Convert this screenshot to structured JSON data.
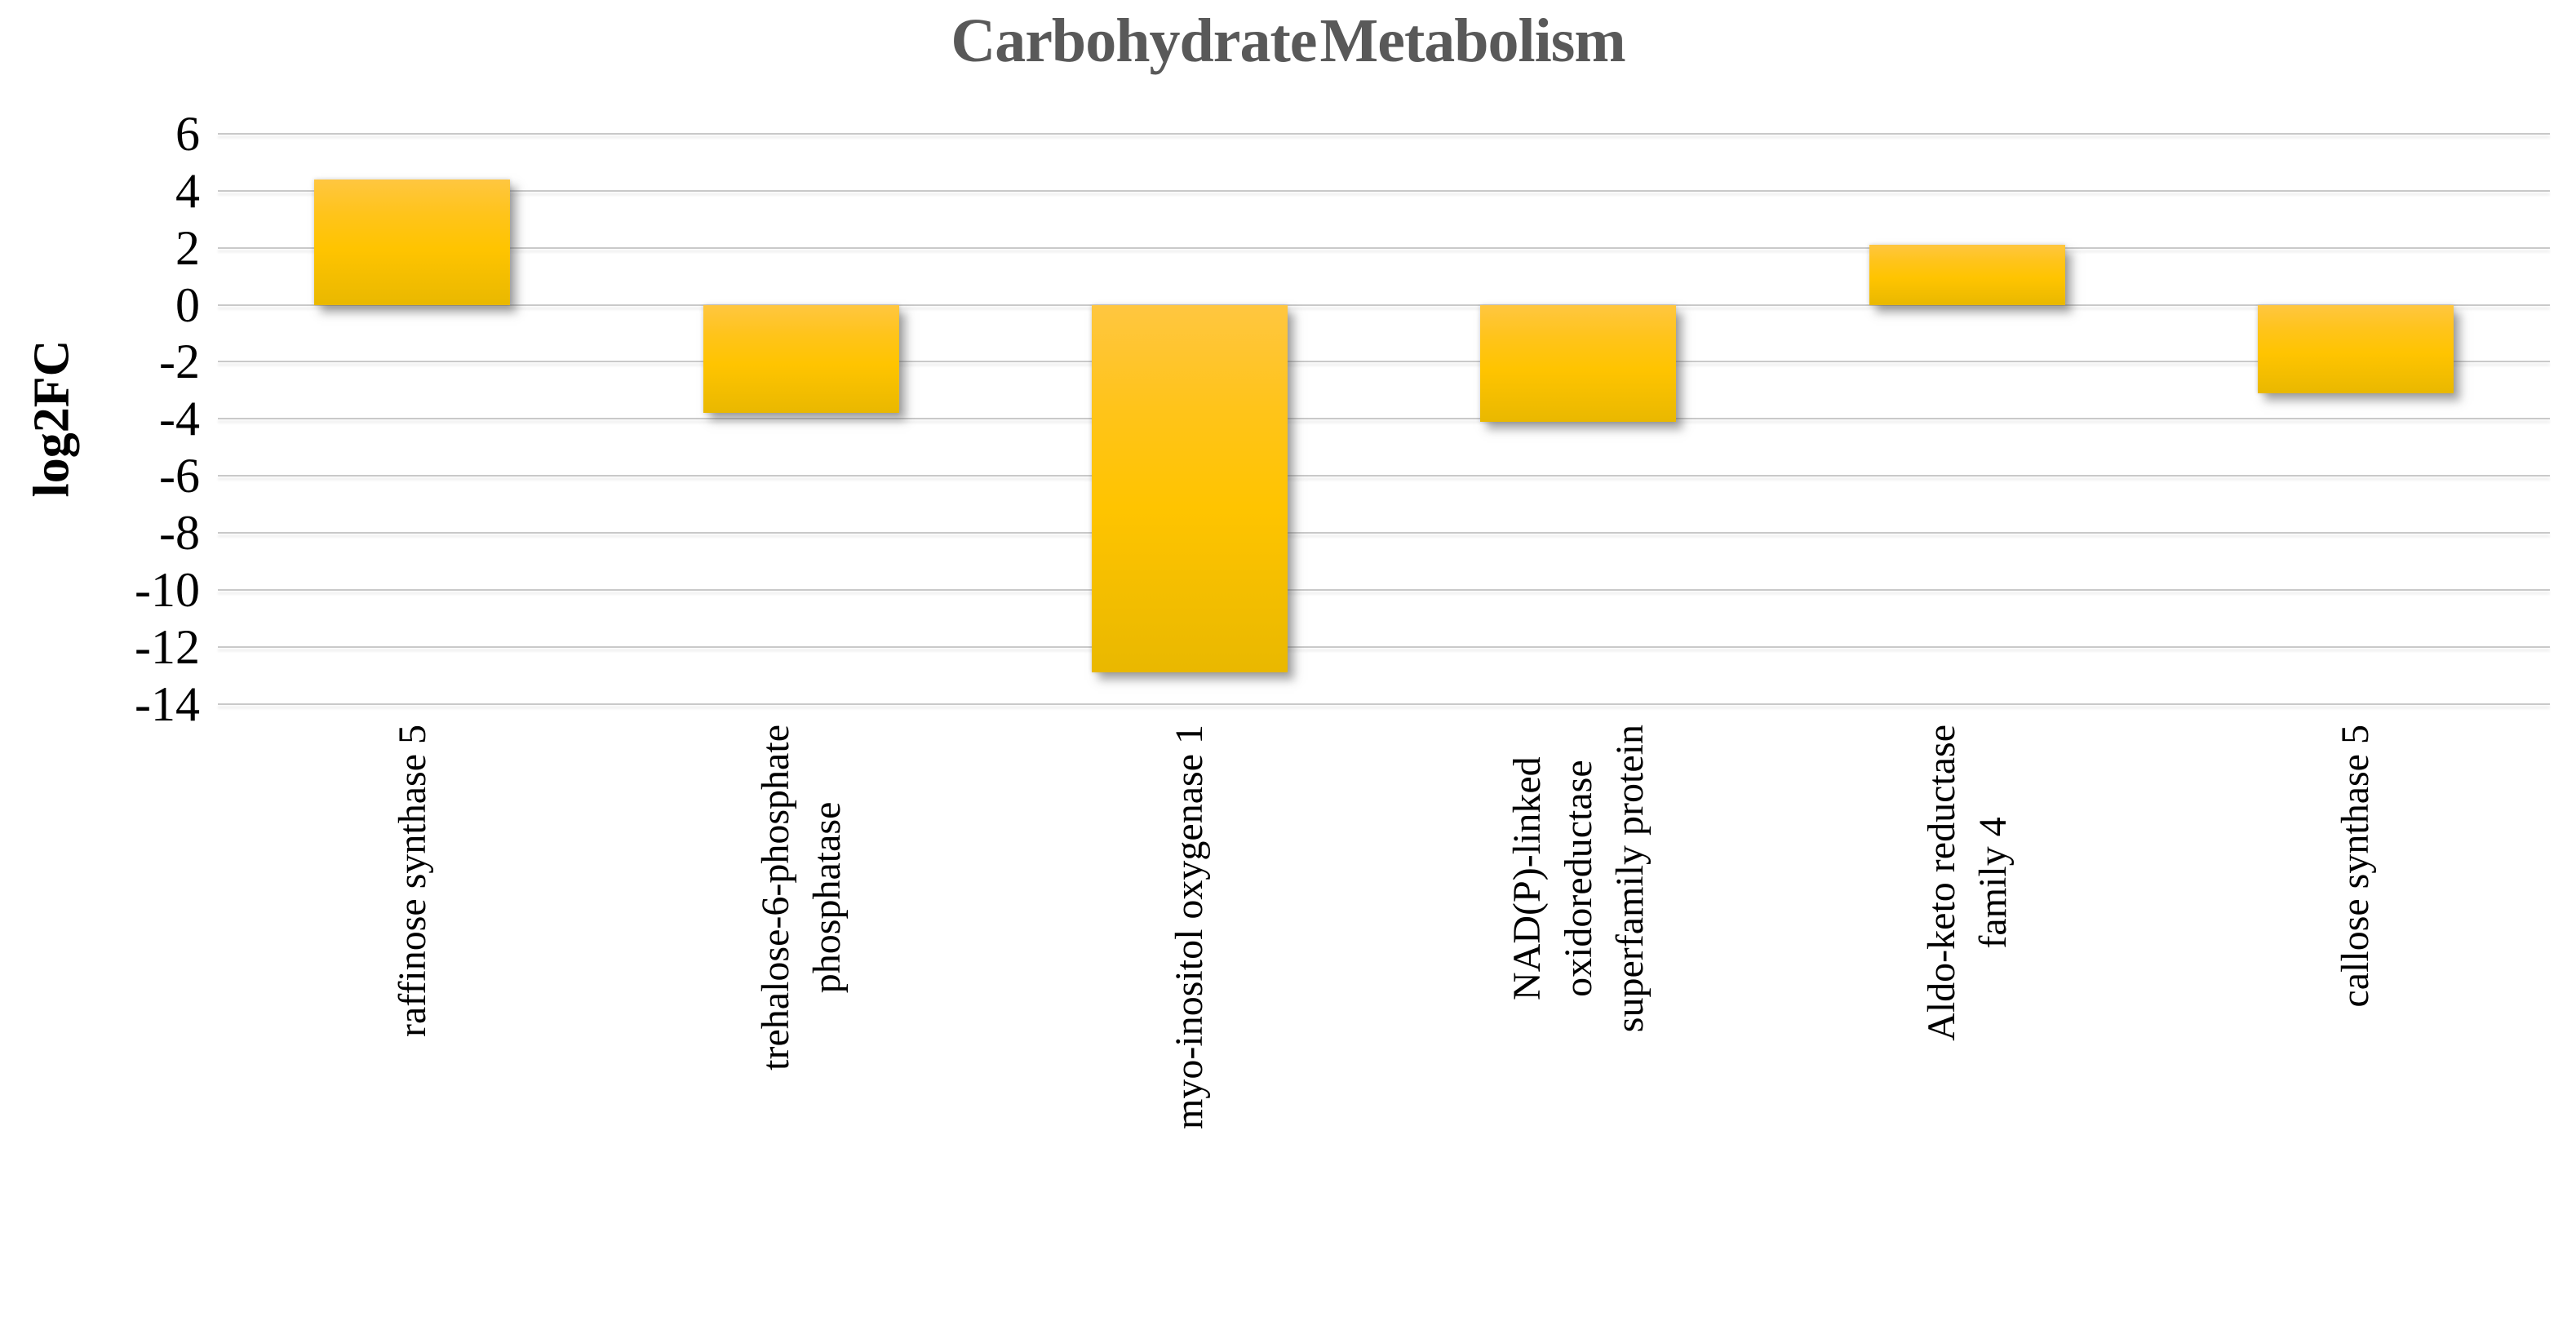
{
  "chart_data": {
    "type": "bar",
    "title": "Carbohydrate Metabolism",
    "ylabel": "log2FC",
    "xlabel": "",
    "ylim": [
      -14,
      6
    ],
    "ytick_step": 2,
    "ytick_labels": [
      "6",
      "4",
      "2",
      "0",
      "-2",
      "-4",
      "-6",
      "-8",
      "-10",
      "-12",
      "-14"
    ],
    "grid": "horizontal",
    "legend_position": "none",
    "categories": [
      "raffinose synthase 5",
      "trehalose-6-phosphate\nphosphatase",
      "myo-inositol oxygenase 1",
      "NAD(P)-linked\noxidoreductase\nsuperfamily protein",
      "Aldo-keto reductase\nfamily 4",
      "callose synthase 5"
    ],
    "values": [
      4.4,
      -3.8,
      -12.9,
      -4.1,
      2.1,
      -3.1
    ],
    "series": [
      {
        "name": "log2FC",
        "values": [
          4.4,
          -3.8,
          -12.9,
          -4.1,
          2.1,
          -3.1
        ]
      }
    ]
  },
  "style": {
    "title_color": "#595959",
    "text_color": "#000000",
    "gridline_color": "#c9c9c9",
    "bar_fill_top": "#ffc640",
    "bar_fill_mid": "#ffc400",
    "bar_fill_bottom": "#e9b800",
    "background": "#ffffff"
  }
}
